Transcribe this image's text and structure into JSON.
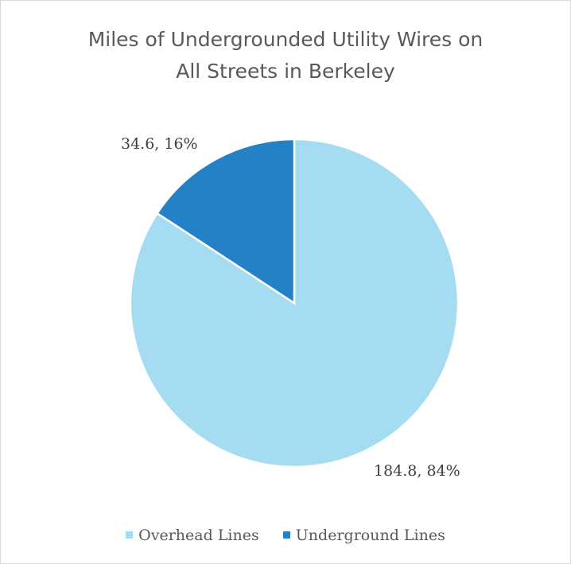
{
  "chart_data": {
    "type": "pie",
    "title_lines": [
      "Miles of Undergrounded Utility Wires on",
      "All Streets in Berkeley"
    ],
    "slices": [
      {
        "name": "Overhead Lines",
        "value": 184.8,
        "label": "184.8, 84%",
        "color": "#a6dcf2"
      },
      {
        "name": "Underground Lines",
        "value": 34.6,
        "label": "34.6, 16%",
        "color": "#2481c5"
      }
    ],
    "legend_position": "bottom"
  }
}
